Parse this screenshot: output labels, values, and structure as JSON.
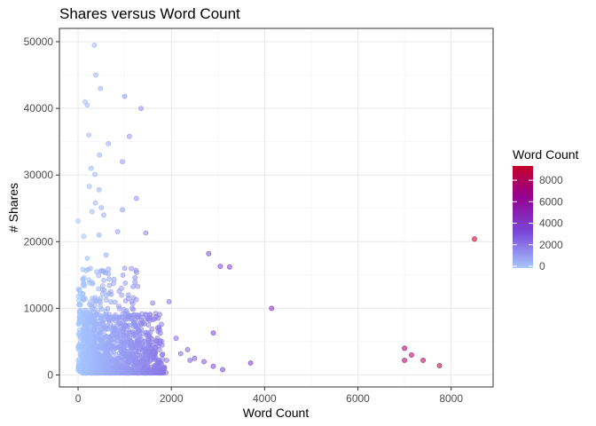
{
  "chart_data": {
    "type": "scatter",
    "title": "Shares versus Word Count",
    "xlabel": "Word Count",
    "ylabel": "# Shares",
    "xlim": [
      -400,
      8900
    ],
    "ylim": [
      -1800,
      52000
    ],
    "x_ticks": [
      "0",
      "2000",
      "4000",
      "6000",
      "8000"
    ],
    "y_ticks": [
      "0",
      "10000",
      "20000",
      "30000",
      "40000",
      "50000"
    ],
    "grid": true,
    "legend": {
      "title": "Word Count",
      "position": "right",
      "labels": [
        "0",
        "2000",
        "4000",
        "6000",
        "8000"
      ],
      "range": [
        0,
        8500
      ],
      "colors": {
        "low": "#a6c6ff",
        "mid": "#7a48d8",
        "mid2": "#950090",
        "high": "#c4002a"
      }
    },
    "points": [
      [
        350,
        49500
      ],
      [
        380,
        45000
      ],
      [
        480,
        43000
      ],
      [
        1000,
        41800
      ],
      [
        150,
        41000
      ],
      [
        200,
        40500
      ],
      [
        1350,
        40000
      ],
      [
        230,
        36000
      ],
      [
        1100,
        35800
      ],
      [
        650,
        34700
      ],
      [
        460,
        33000
      ],
      [
        950,
        32000
      ],
      [
        280,
        31000
      ],
      [
        360,
        30100
      ],
      [
        240,
        28300
      ],
      [
        450,
        27800
      ],
      [
        370,
        25800
      ],
      [
        500,
        25100
      ],
      [
        1250,
        26500
      ],
      [
        950,
        24800
      ],
      [
        300,
        24500
      ],
      [
        550,
        24000
      ],
      [
        0,
        23100
      ],
      [
        850,
        21500
      ],
      [
        1450,
        21300
      ],
      [
        120,
        20800
      ],
      [
        450,
        21000
      ],
      [
        2800,
        18200
      ],
      [
        3050,
        16300
      ],
      [
        3250,
        16200
      ],
      [
        600,
        18000
      ],
      [
        200,
        17500
      ],
      [
        1000,
        16000
      ],
      [
        400,
        15500
      ],
      [
        4150,
        10000
      ],
      [
        2900,
        6300
      ],
      [
        3700,
        1800
      ],
      [
        3100,
        800
      ],
      [
        2350,
        3800
      ],
      [
        2500,
        2500
      ],
      [
        2900,
        1300
      ],
      [
        1900,
        2200
      ],
      [
        1600,
        10800
      ],
      [
        1950,
        11000
      ],
      [
        1450,
        9000
      ],
      [
        2100,
        5500
      ],
      [
        7000,
        4000
      ],
      [
        7150,
        3000
      ],
      [
        7400,
        2200
      ],
      [
        7000,
        2200
      ],
      [
        7750,
        1400
      ],
      [
        8500,
        20400
      ],
      [
        1150,
        11000
      ],
      [
        700,
        12500
      ],
      [
        100,
        12200
      ],
      [
        250,
        13800
      ],
      [
        550,
        14200
      ],
      [
        800,
        9000
      ],
      [
        1200,
        8000
      ],
      [
        1500,
        6000
      ],
      [
        1700,
        5500
      ],
      [
        1800,
        4500
      ],
      [
        2200,
        3200
      ],
      [
        2400,
        2200
      ],
      [
        2700,
        2000
      ]
    ]
  }
}
